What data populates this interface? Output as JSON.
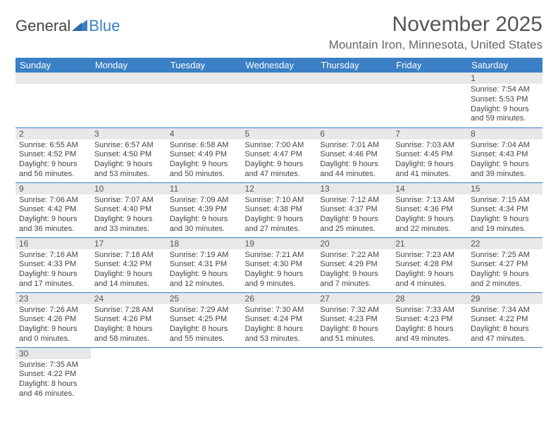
{
  "logo": {
    "word1": "General",
    "word2": "Blue"
  },
  "title": "November 2025",
  "subtitle": "Mountain Iron, Minnesota, United States",
  "colors": {
    "header_bg": "#3b7fc4",
    "header_text": "#ffffff",
    "daynum_bg": "#e8e8e8",
    "row_border": "#3b7fc4",
    "page_bg": "#ffffff"
  },
  "weekdays": [
    "Sunday",
    "Monday",
    "Tuesday",
    "Wednesday",
    "Thursday",
    "Friday",
    "Saturday"
  ],
  "weeks": [
    [
      null,
      null,
      null,
      null,
      null,
      null,
      {
        "n": "1",
        "sr": "Sunrise: 7:54 AM",
        "ss": "Sunset: 5:53 PM",
        "d1": "Daylight: 9 hours",
        "d2": "and 59 minutes."
      }
    ],
    [
      {
        "n": "2",
        "sr": "Sunrise: 6:55 AM",
        "ss": "Sunset: 4:52 PM",
        "d1": "Daylight: 9 hours",
        "d2": "and 56 minutes."
      },
      {
        "n": "3",
        "sr": "Sunrise: 6:57 AM",
        "ss": "Sunset: 4:50 PM",
        "d1": "Daylight: 9 hours",
        "d2": "and 53 minutes."
      },
      {
        "n": "4",
        "sr": "Sunrise: 6:58 AM",
        "ss": "Sunset: 4:49 PM",
        "d1": "Daylight: 9 hours",
        "d2": "and 50 minutes."
      },
      {
        "n": "5",
        "sr": "Sunrise: 7:00 AM",
        "ss": "Sunset: 4:47 PM",
        "d1": "Daylight: 9 hours",
        "d2": "and 47 minutes."
      },
      {
        "n": "6",
        "sr": "Sunrise: 7:01 AM",
        "ss": "Sunset: 4:46 PM",
        "d1": "Daylight: 9 hours",
        "d2": "and 44 minutes."
      },
      {
        "n": "7",
        "sr": "Sunrise: 7:03 AM",
        "ss": "Sunset: 4:45 PM",
        "d1": "Daylight: 9 hours",
        "d2": "and 41 minutes."
      },
      {
        "n": "8",
        "sr": "Sunrise: 7:04 AM",
        "ss": "Sunset: 4:43 PM",
        "d1": "Daylight: 9 hours",
        "d2": "and 39 minutes."
      }
    ],
    [
      {
        "n": "9",
        "sr": "Sunrise: 7:06 AM",
        "ss": "Sunset: 4:42 PM",
        "d1": "Daylight: 9 hours",
        "d2": "and 36 minutes."
      },
      {
        "n": "10",
        "sr": "Sunrise: 7:07 AM",
        "ss": "Sunset: 4:40 PM",
        "d1": "Daylight: 9 hours",
        "d2": "and 33 minutes."
      },
      {
        "n": "11",
        "sr": "Sunrise: 7:09 AM",
        "ss": "Sunset: 4:39 PM",
        "d1": "Daylight: 9 hours",
        "d2": "and 30 minutes."
      },
      {
        "n": "12",
        "sr": "Sunrise: 7:10 AM",
        "ss": "Sunset: 4:38 PM",
        "d1": "Daylight: 9 hours",
        "d2": "and 27 minutes."
      },
      {
        "n": "13",
        "sr": "Sunrise: 7:12 AM",
        "ss": "Sunset: 4:37 PM",
        "d1": "Daylight: 9 hours",
        "d2": "and 25 minutes."
      },
      {
        "n": "14",
        "sr": "Sunrise: 7:13 AM",
        "ss": "Sunset: 4:36 PM",
        "d1": "Daylight: 9 hours",
        "d2": "and 22 minutes."
      },
      {
        "n": "15",
        "sr": "Sunrise: 7:15 AM",
        "ss": "Sunset: 4:34 PM",
        "d1": "Daylight: 9 hours",
        "d2": "and 19 minutes."
      }
    ],
    [
      {
        "n": "16",
        "sr": "Sunrise: 7:16 AM",
        "ss": "Sunset: 4:33 PM",
        "d1": "Daylight: 9 hours",
        "d2": "and 17 minutes."
      },
      {
        "n": "17",
        "sr": "Sunrise: 7:18 AM",
        "ss": "Sunset: 4:32 PM",
        "d1": "Daylight: 9 hours",
        "d2": "and 14 minutes."
      },
      {
        "n": "18",
        "sr": "Sunrise: 7:19 AM",
        "ss": "Sunset: 4:31 PM",
        "d1": "Daylight: 9 hours",
        "d2": "and 12 minutes."
      },
      {
        "n": "19",
        "sr": "Sunrise: 7:21 AM",
        "ss": "Sunset: 4:30 PM",
        "d1": "Daylight: 9 hours",
        "d2": "and 9 minutes."
      },
      {
        "n": "20",
        "sr": "Sunrise: 7:22 AM",
        "ss": "Sunset: 4:29 PM",
        "d1": "Daylight: 9 hours",
        "d2": "and 7 minutes."
      },
      {
        "n": "21",
        "sr": "Sunrise: 7:23 AM",
        "ss": "Sunset: 4:28 PM",
        "d1": "Daylight: 9 hours",
        "d2": "and 4 minutes."
      },
      {
        "n": "22",
        "sr": "Sunrise: 7:25 AM",
        "ss": "Sunset: 4:27 PM",
        "d1": "Daylight: 9 hours",
        "d2": "and 2 minutes."
      }
    ],
    [
      {
        "n": "23",
        "sr": "Sunrise: 7:26 AM",
        "ss": "Sunset: 4:26 PM",
        "d1": "Daylight: 9 hours",
        "d2": "and 0 minutes."
      },
      {
        "n": "24",
        "sr": "Sunrise: 7:28 AM",
        "ss": "Sunset: 4:26 PM",
        "d1": "Daylight: 8 hours",
        "d2": "and 58 minutes."
      },
      {
        "n": "25",
        "sr": "Sunrise: 7:29 AM",
        "ss": "Sunset: 4:25 PM",
        "d1": "Daylight: 8 hours",
        "d2": "and 55 minutes."
      },
      {
        "n": "26",
        "sr": "Sunrise: 7:30 AM",
        "ss": "Sunset: 4:24 PM",
        "d1": "Daylight: 8 hours",
        "d2": "and 53 minutes."
      },
      {
        "n": "27",
        "sr": "Sunrise: 7:32 AM",
        "ss": "Sunset: 4:23 PM",
        "d1": "Daylight: 8 hours",
        "d2": "and 51 minutes."
      },
      {
        "n": "28",
        "sr": "Sunrise: 7:33 AM",
        "ss": "Sunset: 4:23 PM",
        "d1": "Daylight: 8 hours",
        "d2": "and 49 minutes."
      },
      {
        "n": "29",
        "sr": "Sunrise: 7:34 AM",
        "ss": "Sunset: 4:22 PM",
        "d1": "Daylight: 8 hours",
        "d2": "and 47 minutes."
      }
    ],
    [
      {
        "n": "30",
        "sr": "Sunrise: 7:35 AM",
        "ss": "Sunset: 4:22 PM",
        "d1": "Daylight: 8 hours",
        "d2": "and 46 minutes."
      },
      null,
      null,
      null,
      null,
      null,
      null
    ]
  ]
}
